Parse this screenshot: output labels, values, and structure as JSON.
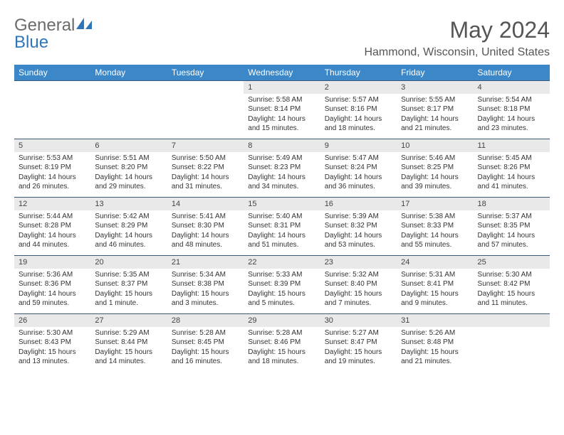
{
  "logo": {
    "general": "General",
    "blue": "Blue"
  },
  "title": "May 2024",
  "location": "Hammond, Wisconsin, United States",
  "colors": {
    "header_bg": "#3b87c8",
    "header_text": "#ffffff",
    "daynum_bg": "#e9e9e9",
    "border": "#3b5a7a",
    "text": "#333333",
    "title_text": "#555555",
    "logo_gray": "#6b6b6b",
    "logo_blue": "#2e76b8"
  },
  "weekdays": [
    "Sunday",
    "Monday",
    "Tuesday",
    "Wednesday",
    "Thursday",
    "Friday",
    "Saturday"
  ],
  "weeks": [
    [
      null,
      null,
      null,
      {
        "n": "1",
        "sr": "Sunrise: 5:58 AM",
        "ss": "Sunset: 8:14 PM",
        "dl": "Daylight: 14 hours and 15 minutes."
      },
      {
        "n": "2",
        "sr": "Sunrise: 5:57 AM",
        "ss": "Sunset: 8:16 PM",
        "dl": "Daylight: 14 hours and 18 minutes."
      },
      {
        "n": "3",
        "sr": "Sunrise: 5:55 AM",
        "ss": "Sunset: 8:17 PM",
        "dl": "Daylight: 14 hours and 21 minutes."
      },
      {
        "n": "4",
        "sr": "Sunrise: 5:54 AM",
        "ss": "Sunset: 8:18 PM",
        "dl": "Daylight: 14 hours and 23 minutes."
      }
    ],
    [
      {
        "n": "5",
        "sr": "Sunrise: 5:53 AM",
        "ss": "Sunset: 8:19 PM",
        "dl": "Daylight: 14 hours and 26 minutes."
      },
      {
        "n": "6",
        "sr": "Sunrise: 5:51 AM",
        "ss": "Sunset: 8:20 PM",
        "dl": "Daylight: 14 hours and 29 minutes."
      },
      {
        "n": "7",
        "sr": "Sunrise: 5:50 AM",
        "ss": "Sunset: 8:22 PM",
        "dl": "Daylight: 14 hours and 31 minutes."
      },
      {
        "n": "8",
        "sr": "Sunrise: 5:49 AM",
        "ss": "Sunset: 8:23 PM",
        "dl": "Daylight: 14 hours and 34 minutes."
      },
      {
        "n": "9",
        "sr": "Sunrise: 5:47 AM",
        "ss": "Sunset: 8:24 PM",
        "dl": "Daylight: 14 hours and 36 minutes."
      },
      {
        "n": "10",
        "sr": "Sunrise: 5:46 AM",
        "ss": "Sunset: 8:25 PM",
        "dl": "Daylight: 14 hours and 39 minutes."
      },
      {
        "n": "11",
        "sr": "Sunrise: 5:45 AM",
        "ss": "Sunset: 8:26 PM",
        "dl": "Daylight: 14 hours and 41 minutes."
      }
    ],
    [
      {
        "n": "12",
        "sr": "Sunrise: 5:44 AM",
        "ss": "Sunset: 8:28 PM",
        "dl": "Daylight: 14 hours and 44 minutes."
      },
      {
        "n": "13",
        "sr": "Sunrise: 5:42 AM",
        "ss": "Sunset: 8:29 PM",
        "dl": "Daylight: 14 hours and 46 minutes."
      },
      {
        "n": "14",
        "sr": "Sunrise: 5:41 AM",
        "ss": "Sunset: 8:30 PM",
        "dl": "Daylight: 14 hours and 48 minutes."
      },
      {
        "n": "15",
        "sr": "Sunrise: 5:40 AM",
        "ss": "Sunset: 8:31 PM",
        "dl": "Daylight: 14 hours and 51 minutes."
      },
      {
        "n": "16",
        "sr": "Sunrise: 5:39 AM",
        "ss": "Sunset: 8:32 PM",
        "dl": "Daylight: 14 hours and 53 minutes."
      },
      {
        "n": "17",
        "sr": "Sunrise: 5:38 AM",
        "ss": "Sunset: 8:33 PM",
        "dl": "Daylight: 14 hours and 55 minutes."
      },
      {
        "n": "18",
        "sr": "Sunrise: 5:37 AM",
        "ss": "Sunset: 8:35 PM",
        "dl": "Daylight: 14 hours and 57 minutes."
      }
    ],
    [
      {
        "n": "19",
        "sr": "Sunrise: 5:36 AM",
        "ss": "Sunset: 8:36 PM",
        "dl": "Daylight: 14 hours and 59 minutes."
      },
      {
        "n": "20",
        "sr": "Sunrise: 5:35 AM",
        "ss": "Sunset: 8:37 PM",
        "dl": "Daylight: 15 hours and 1 minute."
      },
      {
        "n": "21",
        "sr": "Sunrise: 5:34 AM",
        "ss": "Sunset: 8:38 PM",
        "dl": "Daylight: 15 hours and 3 minutes."
      },
      {
        "n": "22",
        "sr": "Sunrise: 5:33 AM",
        "ss": "Sunset: 8:39 PM",
        "dl": "Daylight: 15 hours and 5 minutes."
      },
      {
        "n": "23",
        "sr": "Sunrise: 5:32 AM",
        "ss": "Sunset: 8:40 PM",
        "dl": "Daylight: 15 hours and 7 minutes."
      },
      {
        "n": "24",
        "sr": "Sunrise: 5:31 AM",
        "ss": "Sunset: 8:41 PM",
        "dl": "Daylight: 15 hours and 9 minutes."
      },
      {
        "n": "25",
        "sr": "Sunrise: 5:30 AM",
        "ss": "Sunset: 8:42 PM",
        "dl": "Daylight: 15 hours and 11 minutes."
      }
    ],
    [
      {
        "n": "26",
        "sr": "Sunrise: 5:30 AM",
        "ss": "Sunset: 8:43 PM",
        "dl": "Daylight: 15 hours and 13 minutes."
      },
      {
        "n": "27",
        "sr": "Sunrise: 5:29 AM",
        "ss": "Sunset: 8:44 PM",
        "dl": "Daylight: 15 hours and 14 minutes."
      },
      {
        "n": "28",
        "sr": "Sunrise: 5:28 AM",
        "ss": "Sunset: 8:45 PM",
        "dl": "Daylight: 15 hours and 16 minutes."
      },
      {
        "n": "29",
        "sr": "Sunrise: 5:28 AM",
        "ss": "Sunset: 8:46 PM",
        "dl": "Daylight: 15 hours and 18 minutes."
      },
      {
        "n": "30",
        "sr": "Sunrise: 5:27 AM",
        "ss": "Sunset: 8:47 PM",
        "dl": "Daylight: 15 hours and 19 minutes."
      },
      {
        "n": "31",
        "sr": "Sunrise: 5:26 AM",
        "ss": "Sunset: 8:48 PM",
        "dl": "Daylight: 15 hours and 21 minutes."
      },
      null
    ]
  ]
}
